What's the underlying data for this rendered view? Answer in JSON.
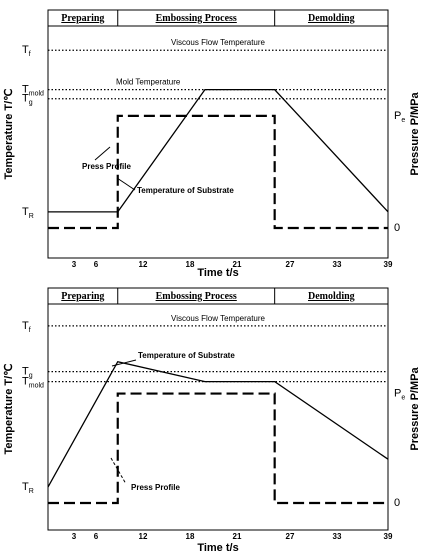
{
  "chart_data": [
    {
      "type": "line",
      "xlabel": "Time t/s",
      "ylabel_left": "Temperature T/℃",
      "ylabel_right": "Pressure P/MPa",
      "xlim": [
        0,
        30
      ],
      "x_ticks": [
        "3",
        "6",
        "12",
        "18",
        "21",
        "27",
        "33",
        "39"
      ],
      "phases": [
        "Preparing",
        "Embossing Process",
        "Demolding"
      ],
      "phase_boundaries": [
        0,
        8,
        26,
        39
      ],
      "left_levels": [
        {
          "main": "T",
          "sub": "f",
          "y": 0.88
        },
        {
          "main": "T",
          "sub": "mold",
          "y": 0.685
        },
        {
          "main": "T",
          "sub": "g",
          "y": 0.64
        },
        {
          "main": "T",
          "sub": "R",
          "y": 0.08
        }
      ],
      "right_levels": [
        {
          "main": "P",
          "sub": "e",
          "y": 0.555
        },
        {
          "main": "0",
          "sub": "",
          "y": 0.0
        }
      ],
      "reference_lines": [
        {
          "label": "Viscous Flow Temperature",
          "y": 0.88
        },
        {
          "label": "Mold Temperature",
          "y": 0.685
        },
        {
          "label": "",
          "y": 0.64
        }
      ],
      "series": [
        {
          "name": "Temperature of Substrate",
          "style": "solid",
          "x": [
            0,
            8,
            18,
            26,
            39
          ],
          "y": [
            0.08,
            0.08,
            0.685,
            0.685,
            0.08
          ]
        },
        {
          "name": "Press Profile",
          "style": "dashed",
          "x": [
            0,
            8,
            8,
            26,
            26,
            39
          ],
          "y": [
            0,
            0,
            0.555,
            0.555,
            0,
            0
          ]
        }
      ],
      "annotations": [
        "Press Profile",
        "Temperature of Substrate"
      ]
    },
    {
      "type": "line",
      "xlabel": "Time t/s",
      "ylabel_left": "Temperature T/℃",
      "ylabel_right": "Pressure P/MPa",
      "xlim": [
        0,
        30
      ],
      "x_ticks": [
        "3",
        "6",
        "12",
        "18",
        "21",
        "27",
        "33",
        "39"
      ],
      "phases": [
        "Preparing",
        "Embossing Process",
        "Demolding"
      ],
      "phase_boundaries": [
        0,
        8,
        26,
        39
      ],
      "left_levels": [
        {
          "main": "T",
          "sub": "f",
          "y": 0.89
        },
        {
          "main": "T",
          "sub": "g",
          "y": 0.66
        },
        {
          "main": "T",
          "sub": "mold",
          "y": 0.61
        },
        {
          "main": "T",
          "sub": "R",
          "y": 0.08
        }
      ],
      "right_levels": [
        {
          "main": "P",
          "sub": "e",
          "y": 0.55
        },
        {
          "main": "0",
          "sub": "",
          "y": 0.0
        }
      ],
      "reference_lines": [
        {
          "label": "Viscous Flow Temperature",
          "y": 0.89
        },
        {
          "label": "",
          "y": 0.66
        },
        {
          "label": "",
          "y": 0.61
        }
      ],
      "series": [
        {
          "name": "Temperature of Substrate",
          "style": "solid",
          "x": [
            0,
            8,
            18,
            26,
            39
          ],
          "y": [
            0.08,
            0.71,
            0.61,
            0.61,
            0.22
          ]
        },
        {
          "name": "Press Profile",
          "style": "dashed",
          "x": [
            0,
            8,
            8,
            26,
            26,
            39
          ],
          "y": [
            0,
            0,
            0.55,
            0.55,
            0,
            0
          ]
        }
      ],
      "annotations": [
        "Temperature of Substrate",
        "Press Profile"
      ]
    }
  ]
}
